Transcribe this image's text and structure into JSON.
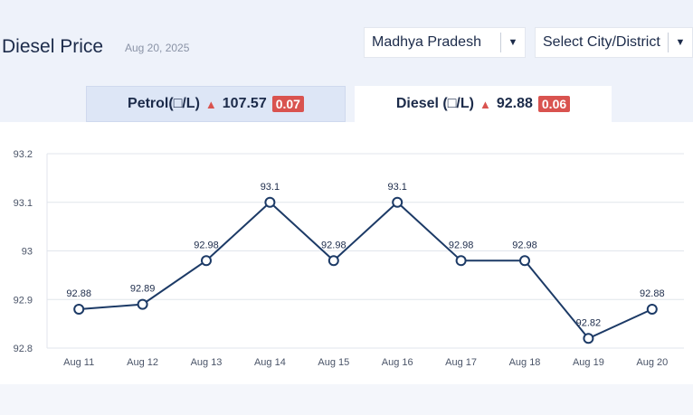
{
  "header": {
    "title": "Diesel Price",
    "date": "Aug 20, 2025",
    "state_select": "Madhya Pradesh",
    "city_select": "Select City/District"
  },
  "tabs": {
    "petrol": {
      "label": "Petrol(□/L)",
      "price": "107.57",
      "change": "0.07"
    },
    "diesel": {
      "label": "Diesel (□/L)",
      "price": "92.88",
      "change": "0.06"
    }
  },
  "colors": {
    "line": "#1c3a66",
    "grid": "#e1e5ec",
    "up_badge": "#d9534f",
    "active_tab": "#ffffff",
    "inactive_tab": "#dde6f6"
  },
  "chart_data": {
    "type": "line",
    "categories": [
      "Aug 11",
      "Aug 12",
      "Aug 13",
      "Aug 14",
      "Aug 15",
      "Aug 16",
      "Aug 17",
      "Aug 18",
      "Aug 19",
      "Aug 20"
    ],
    "values": [
      92.88,
      92.89,
      92.98,
      93.1,
      92.98,
      93.1,
      92.98,
      92.98,
      92.82,
      92.88
    ],
    "data_labels": [
      "92.88",
      "92.89",
      "92.98",
      "93.1",
      "92.98",
      "93.1",
      "92.98",
      "92.98",
      "92.82",
      "92.88"
    ],
    "ylim": [
      92.8,
      93.2
    ],
    "yticks": [
      93.2,
      93.1,
      93,
      92.9,
      92.8
    ],
    "ytick_labels": [
      "93.2",
      "93.1",
      "93",
      "92.9",
      "92.8"
    ],
    "grid": true,
    "title": "",
    "xlabel": "",
    "ylabel": ""
  }
}
